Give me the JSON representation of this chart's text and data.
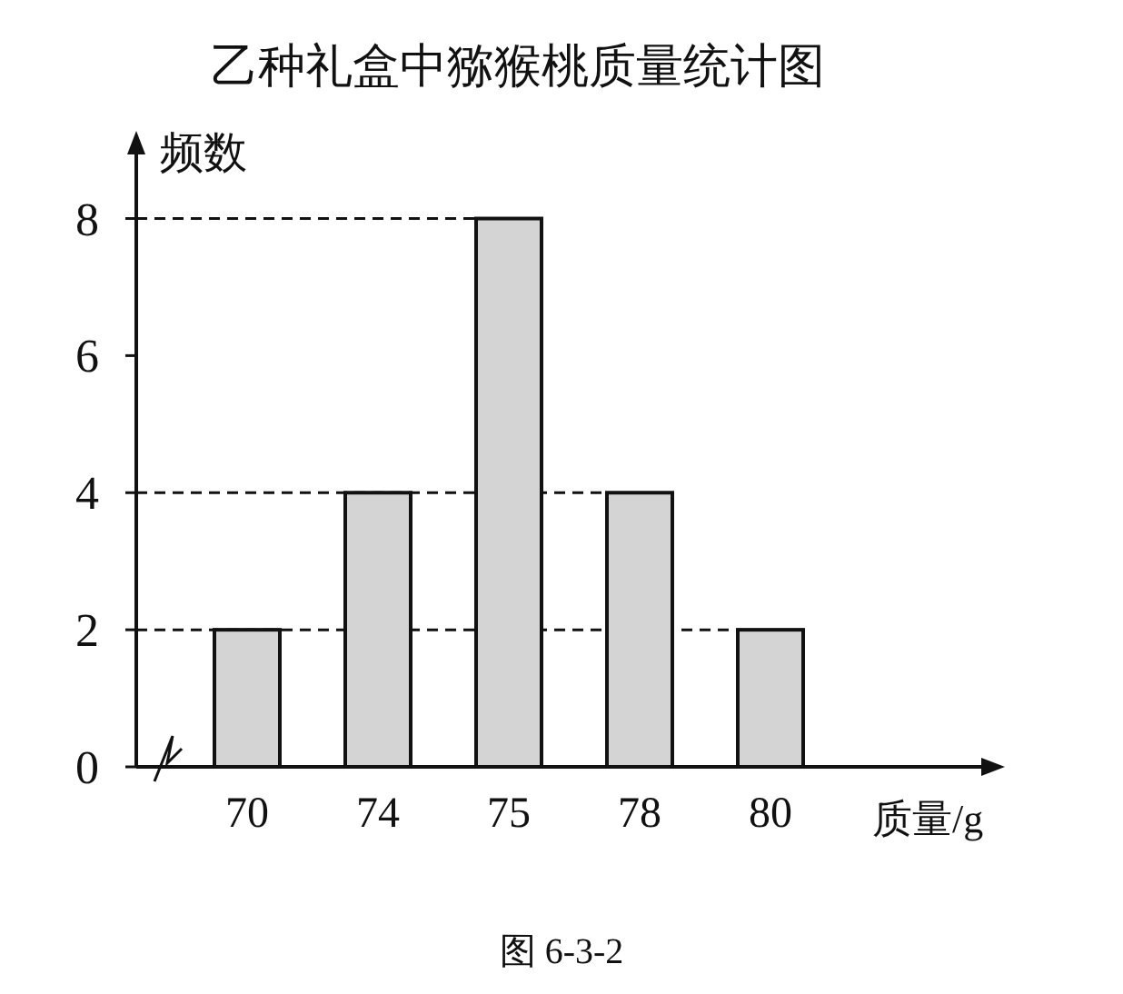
{
  "chart_data": {
    "type": "bar",
    "title": "乙种礼盒中猕猴桃质量统计图",
    "ylabel": "频数",
    "xlabel": "质量/g",
    "categories": [
      "70",
      "74",
      "75",
      "78",
      "80"
    ],
    "values": [
      2,
      4,
      8,
      4,
      2
    ],
    "color": "#d4d4d4",
    "ylim": [
      0,
      9.2
    ],
    "yticks": [
      0,
      2,
      4,
      6,
      8
    ],
    "ref_lines": [
      {
        "axis": "y",
        "value": 8,
        "line_style": "dashed"
      },
      {
        "axis": "y",
        "value": 4,
        "line_style": "dashed"
      },
      {
        "axis": "y",
        "value": 2,
        "line_style": "dashed"
      }
    ],
    "annotations": [
      "图 6-3-2"
    ]
  }
}
